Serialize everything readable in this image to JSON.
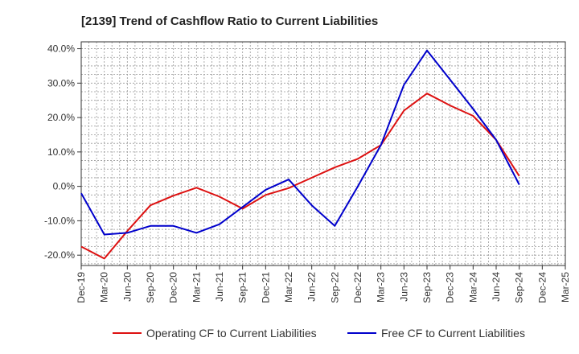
{
  "chart_data": {
    "type": "line",
    "title": "[2139]  Trend of Cashflow Ratio to Current Liabilities",
    "xlabel": "",
    "ylabel": "",
    "ylim": [
      -23,
      42
    ],
    "yticks": [
      -20,
      -10,
      0,
      10,
      20,
      30,
      40
    ],
    "ytick_labels": [
      "-20.0%",
      "-10.0%",
      "0.0%",
      "10.0%",
      "20.0%",
      "30.0%",
      "40.0%"
    ],
    "categories": [
      "Dec-19",
      "Mar-20",
      "Jun-20",
      "Sep-20",
      "Dec-20",
      "Mar-21",
      "Jun-21",
      "Sep-21",
      "Dec-21",
      "Mar-22",
      "Jun-22",
      "Sep-22",
      "Dec-22",
      "Mar-23",
      "Jun-23",
      "Sep-23",
      "Dec-23",
      "Mar-24",
      "Jun-24",
      "Sep-24",
      "Dec-24",
      "Mar-25"
    ],
    "grid": true,
    "legend_position": "bottom",
    "series": [
      {
        "name": "Operating CF to Current Liabilities",
        "color": "#dd1111",
        "values": [
          -17.5,
          -21.0,
          -13.0,
          -5.5,
          -2.7,
          -0.4,
          -3.0,
          -6.5,
          -2.5,
          -0.5,
          2.5,
          5.5,
          8.0,
          12.0,
          22.0,
          27.0,
          23.5,
          20.5,
          13.5,
          3.0,
          null,
          null
        ]
      },
      {
        "name": "Free CF to Current Liabilities",
        "color": "#0000cc",
        "values": [
          -2.0,
          -14.0,
          -13.5,
          -11.5,
          -11.5,
          -13.5,
          -11.0,
          -6.0,
          -1.0,
          2.0,
          -5.5,
          -11.5,
          0.0,
          12.0,
          29.5,
          39.5,
          31.0,
          22.5,
          13.5,
          0.5,
          null,
          null
        ]
      }
    ]
  }
}
